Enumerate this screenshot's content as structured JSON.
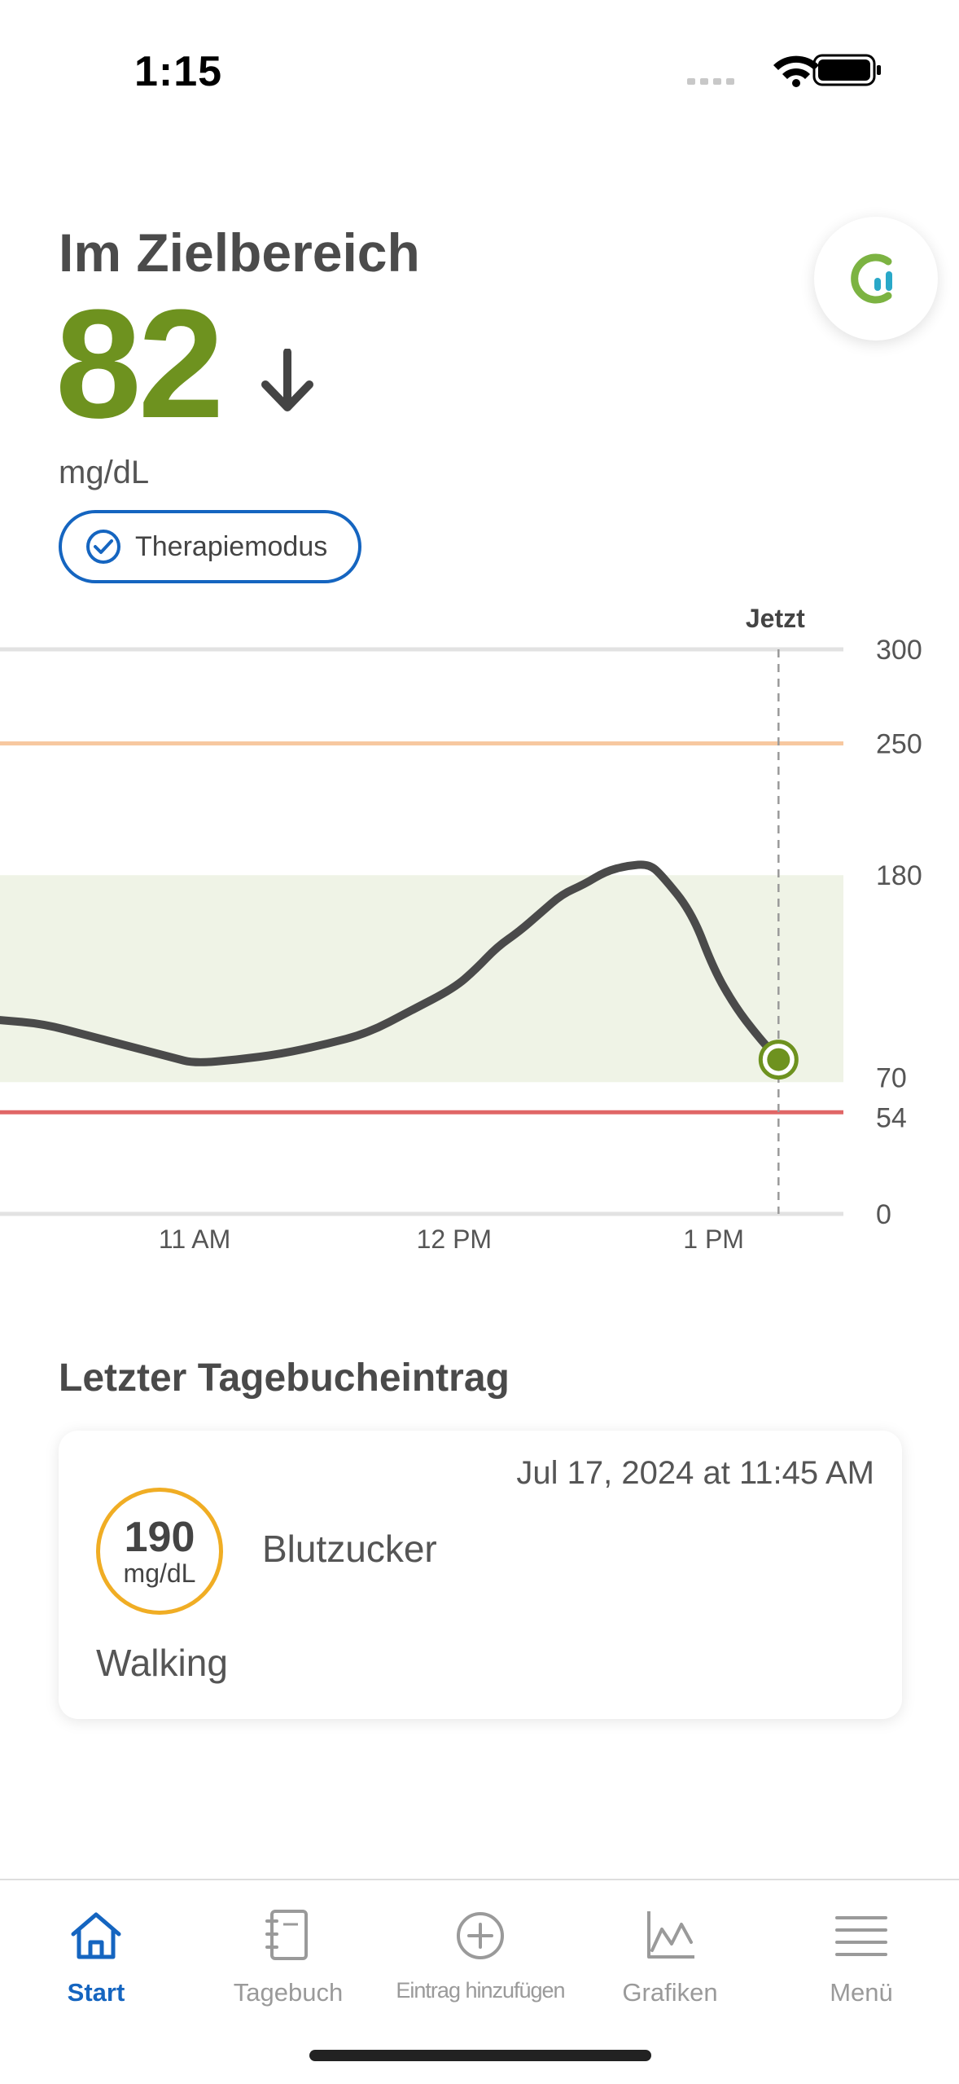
{
  "status_bar": {
    "time": "1:15"
  },
  "header": {
    "status_label": "Im Zielbereich",
    "glucose_value": "82",
    "unit": "mg/dL",
    "trend_icon": "arrow-down-icon",
    "mode_label": "Therapiemodus"
  },
  "colors": {
    "in_range_green": "#6e921f",
    "accent_blue": "#1565c0",
    "high_line": "#f7c8a0",
    "low_line": "#e06666",
    "target_band": "#eff3e6",
    "diary_ring": "#f0ad24"
  },
  "chart_data": {
    "type": "line",
    "now_label": "Jetzt",
    "x_ticks": [
      "11 AM",
      "12 PM",
      "1 PM"
    ],
    "y_ticks": [
      300,
      250,
      180,
      70,
      54,
      0
    ],
    "ylim": [
      0,
      300
    ],
    "target_range": [
      70,
      180
    ],
    "high_threshold": 250,
    "low_threshold": 54,
    "xlim": [
      "10:15",
      "13:30"
    ],
    "x_tick_times": [
      "11:00",
      "12:00",
      "13:00"
    ],
    "now_time": "13:15",
    "series": [
      {
        "points": [
          [
            "10:15",
            103
          ],
          [
            "10:25",
            101
          ],
          [
            "10:35",
            95
          ],
          [
            "10:45",
            89
          ],
          [
            "10:55",
            83
          ],
          [
            "11:00",
            80
          ],
          [
            "11:10",
            82
          ],
          [
            "11:20",
            85
          ],
          [
            "11:30",
            90
          ],
          [
            "11:40",
            96
          ],
          [
            "11:50",
            108
          ],
          [
            "12:00",
            120
          ],
          [
            "12:05",
            130
          ],
          [
            "12:10",
            142
          ],
          [
            "12:15",
            150
          ],
          [
            "12:20",
            160
          ],
          [
            "12:25",
            170
          ],
          [
            "12:30",
            175
          ],
          [
            "12:35",
            182
          ],
          [
            "12:40",
            185
          ],
          [
            "12:45",
            186
          ],
          [
            "12:48",
            180
          ],
          [
            "12:55",
            160
          ],
          [
            "13:00",
            130
          ],
          [
            "13:05",
            110
          ],
          [
            "13:10",
            95
          ],
          [
            "13:15",
            82
          ]
        ]
      }
    ]
  },
  "diary": {
    "heading": "Letzter Tagebucheintrag",
    "date": "Jul 17, 2024 at 11:45 AM",
    "value": "190",
    "unit": "mg/dL",
    "type": "Blutzucker",
    "note": "Walking"
  },
  "tabs": [
    {
      "label": "Start",
      "icon": "home-icon"
    },
    {
      "label": "Tagebuch",
      "icon": "notebook-icon"
    },
    {
      "label": "Eintrag hinzufügen",
      "icon": "plus-circle-icon"
    },
    {
      "label": "Grafiken",
      "icon": "chart-icon"
    },
    {
      "label": "Menü",
      "icon": "menu-icon"
    }
  ]
}
